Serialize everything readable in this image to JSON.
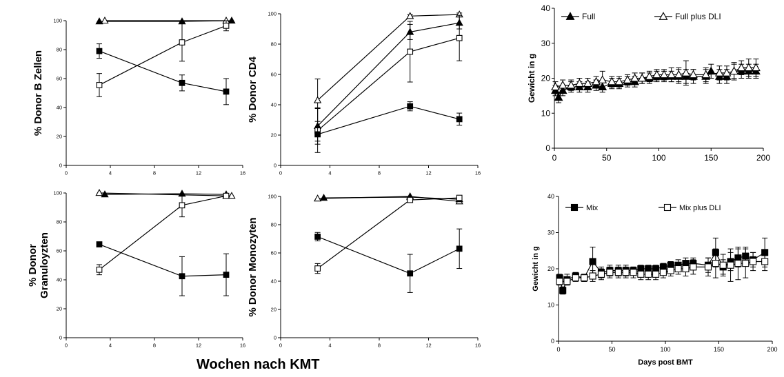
{
  "footer": {
    "xlabel": "Wochen nach KMT"
  },
  "chart_data": [
    {
      "id": "b-zellen",
      "type": "line",
      "ylabel": "% Donor B Zellen",
      "xlabel": "",
      "xlim": [
        0,
        16
      ],
      "ylim": [
        0,
        100
      ],
      "xticks": [
        0,
        4,
        8,
        12,
        16
      ],
      "yticks": [
        0,
        20,
        40,
        60,
        80,
        100
      ],
      "series": [
        {
          "marker": "tri-filled",
          "points": [
            [
              3,
              99.5
            ],
            [
              10.5,
              99.5
            ],
            [
              15,
              100
            ]
          ],
          "err": [
            0,
            0,
            0
          ]
        },
        {
          "marker": "tri-open",
          "points": [
            [
              3.5,
              100
            ],
            [
              14.5,
              100
            ]
          ],
          "err": [
            0,
            0
          ]
        },
        {
          "marker": "sq-filled",
          "points": [
            [
              3,
              79
            ],
            [
              10.5,
              57
            ],
            [
              14.5,
              51
            ]
          ],
          "err": [
            5,
            5.5,
            9
          ]
        },
        {
          "marker": "sq-open",
          "points": [
            [
              3,
              55.5
            ],
            [
              10.5,
              85
            ],
            [
              14.5,
              96.5
            ]
          ],
          "err": [
            8,
            13,
            3.5
          ]
        }
      ]
    },
    {
      "id": "cd4",
      "type": "line",
      "ylabel": "% Donor CD4",
      "xlabel": "",
      "xlim": [
        0,
        16
      ],
      "ylim": [
        0,
        100
      ],
      "xticks": [
        0,
        4,
        8,
        12,
        16
      ],
      "yticks": [
        0,
        20,
        40,
        60,
        80,
        100
      ],
      "series": [
        {
          "marker": "tri-open",
          "points": [
            [
              3,
              43
            ],
            [
              10.5,
              98.5
            ],
            [
              14.5,
              99.5
            ]
          ],
          "err": [
            14,
            1,
            1
          ]
        },
        {
          "marker": "tri-filled",
          "points": [
            [
              3,
              26
            ],
            [
              10.5,
              88
            ],
            [
              14.5,
              94
            ]
          ],
          "err": [
            12,
            5,
            4
          ]
        },
        {
          "marker": "sq-open",
          "points": [
            [
              3,
              23
            ],
            [
              10.5,
              75
            ],
            [
              14.5,
              84
            ]
          ],
          "err": [
            14.5,
            20,
            15
          ]
        },
        {
          "marker": "sq-filled",
          "points": [
            [
              3,
              20.5
            ],
            [
              10.5,
              39
            ],
            [
              14.5,
              30.5
            ]
          ],
          "err": [
            4.5,
            3,
            4
          ]
        }
      ]
    },
    {
      "id": "granulo",
      "type": "line",
      "ylabel": "% Donor\nGranuloyzten",
      "xlabel": "",
      "xlim": [
        0,
        16
      ],
      "ylim": [
        0,
        100
      ],
      "xticks": [
        0,
        4,
        8,
        12,
        16
      ],
      "yticks": [
        0,
        20,
        40,
        60,
        80,
        100
      ],
      "series": [
        {
          "marker": "tri-open",
          "points": [
            [
              3,
              100
            ],
            [
              14.5,
              98
            ],
            [
              15,
              98
            ]
          ],
          "err": [
            0,
            0,
            0
          ]
        },
        {
          "marker": "tri-filled",
          "points": [
            [
              3.5,
              99
            ],
            [
              10.5,
              99.5
            ],
            [
              14.5,
              99
            ]
          ],
          "err": [
            0,
            0,
            0
          ]
        },
        {
          "marker": "sq-open",
          "points": [
            [
              3,
              47
            ],
            [
              10.5,
              91.5
            ],
            [
              14.5,
              98
            ]
          ],
          "err": [
            3.5,
            8,
            1
          ]
        },
        {
          "marker": "sq-filled",
          "points": [
            [
              3,
              64.5
            ],
            [
              10.5,
              42.5
            ],
            [
              14.5,
              43.5
            ]
          ],
          "err": [
            1.5,
            13.5,
            14.5
          ]
        }
      ]
    },
    {
      "id": "monozyten",
      "type": "line",
      "ylabel": "% Donor Monozyten",
      "xlabel": "",
      "xlim": [
        0,
        16
      ],
      "ylim": [
        0,
        100
      ],
      "xticks": [
        0,
        4,
        8,
        12,
        16
      ],
      "yticks": [
        0,
        20,
        40,
        60,
        80,
        100
      ],
      "series": [
        {
          "marker": "tri-open",
          "points": [
            [
              3,
              98.5
            ],
            [
              10.5,
              100
            ],
            [
              14.5,
              96.5
            ]
          ],
          "err": [
            0,
            0,
            0
          ]
        },
        {
          "marker": "tri-filled",
          "points": [
            [
              3.5,
              99
            ],
            [
              10.5,
              99.5
            ],
            [
              14.5,
              98
            ]
          ],
          "err": [
            0,
            0,
            0
          ]
        },
        {
          "marker": "sq-open",
          "points": [
            [
              3,
              49
            ],
            [
              10.5,
              97.5
            ],
            [
              14.5,
              99
            ]
          ],
          "err": [
            3.5,
            1.5,
            1
          ]
        },
        {
          "marker": "sq-filled",
          "points": [
            [
              3,
              71.5
            ],
            [
              10.5,
              45.5
            ],
            [
              14.5,
              63
            ]
          ],
          "err": [
            3,
            13.5,
            14
          ]
        }
      ]
    },
    {
      "id": "gewicht-full",
      "type": "line",
      "ylabel": "Gewicht in g",
      "xlabel": "",
      "xlim": [
        0,
        200
      ],
      "ylim": [
        0,
        40
      ],
      "xticks": [
        0,
        50,
        100,
        150,
        200
      ],
      "yticks": [
        0,
        10,
        20,
        30,
        40
      ],
      "legend": "top",
      "series": [
        {
          "name": "Full",
          "marker": "tri-filled",
          "points": [
            [
              1,
              16.5
            ],
            [
              4,
              14.5
            ],
            [
              8,
              16.5
            ],
            [
              16,
              17.5
            ],
            [
              24,
              17.5
            ],
            [
              32,
              17.5
            ],
            [
              40,
              18
            ],
            [
              46,
              17.5
            ],
            [
              55,
              18.5
            ],
            [
              62,
              18.5
            ],
            [
              70,
              19
            ],
            [
              77,
              19
            ],
            [
              84,
              20
            ],
            [
              91,
              20
            ],
            [
              98,
              20.5
            ],
            [
              105,
              20.5
            ],
            [
              112,
              20.5
            ],
            [
              119,
              20.5
            ],
            [
              126,
              20.5
            ],
            [
              133,
              20.5
            ],
            [
              145,
              20.5
            ],
            [
              150,
              22
            ],
            [
              158,
              20.5
            ],
            [
              165,
              20.5
            ],
            [
              172,
              22
            ],
            [
              179,
              22
            ],
            [
              186,
              22
            ],
            [
              193,
              22
            ]
          ],
          "err": [
            1.5,
            1.5,
            1.5,
            1.5,
            1.5,
            1.5,
            1.5,
            1.5,
            1.5,
            1.5,
            1.5,
            1.5,
            1.5,
            1.5,
            1.5,
            1.5,
            1.5,
            2,
            2,
            2,
            2,
            2,
            2,
            2,
            2,
            2,
            2,
            2
          ]
        },
        {
          "name": "Full plus DLI",
          "marker": "tri-open",
          "points": [
            [
              1,
              17.5
            ],
            [
              8,
              18
            ],
            [
              16,
              18
            ],
            [
              24,
              18.5
            ],
            [
              32,
              18.5
            ],
            [
              40,
              19
            ],
            [
              46,
              19.5
            ],
            [
              55,
              19
            ],
            [
              62,
              19
            ],
            [
              70,
              19.5
            ],
            [
              77,
              20
            ],
            [
              84,
              20
            ],
            [
              91,
              20.5
            ],
            [
              98,
              21
            ],
            [
              105,
              21
            ],
            [
              112,
              21
            ],
            [
              119,
              21
            ],
            [
              126,
              21.5
            ],
            [
              133,
              21
            ],
            [
              145,
              21
            ],
            [
              158,
              21.5
            ],
            [
              165,
              21.5
            ],
            [
              172,
              22
            ],
            [
              179,
              23
            ],
            [
              186,
              23
            ],
            [
              193,
              23
            ]
          ],
          "err": [
            1.5,
            1.5,
            1.5,
            1.5,
            1.5,
            1.5,
            2.5,
            1.5,
            1.5,
            1.5,
            1.5,
            1.5,
            1.5,
            1.5,
            1.5,
            2,
            2,
            3.5,
            1.5,
            2,
            2,
            2,
            2.5,
            2,
            2.5,
            2.5
          ]
        }
      ]
    },
    {
      "id": "gewicht-mix",
      "type": "line",
      "ylabel": "Gewicht in g",
      "xlabel": "Days post BMT",
      "xlim": [
        0,
        200
      ],
      "ylim": [
        0,
        40
      ],
      "xticks": [
        0,
        50,
        100,
        150,
        200
      ],
      "yticks": [
        0,
        10,
        20,
        30,
        40
      ],
      "legend": "top",
      "series": [
        {
          "name": "Mix",
          "marker": "sq-filled",
          "points": [
            [
              1,
              17.5
            ],
            [
              4,
              14
            ],
            [
              8,
              17
            ],
            [
              16,
              18
            ],
            [
              24,
              17.5
            ],
            [
              32,
              22
            ],
            [
              40,
              19
            ],
            [
              48,
              19.5
            ],
            [
              56,
              19.5
            ],
            [
              63,
              19.5
            ],
            [
              70,
              19.5
            ],
            [
              77,
              20
            ],
            [
              84,
              20
            ],
            [
              91,
              20
            ],
            [
              98,
              20.5
            ],
            [
              105,
              21
            ],
            [
              112,
              21
            ],
            [
              119,
              21.5
            ],
            [
              126,
              21.5
            ],
            [
              140,
              21
            ],
            [
              147,
              24.5
            ],
            [
              154,
              20.5
            ],
            [
              161,
              22
            ],
            [
              168,
              23
            ],
            [
              175,
              23.5
            ],
            [
              182,
              22.5
            ],
            [
              193,
              24.5
            ]
          ],
          "err": [
            1,
            1,
            1.5,
            1,
            1,
            4,
            1.5,
            1.5,
            1.5,
            1.5,
            1,
            1,
            1,
            1,
            1,
            1,
            1.5,
            1.5,
            1.5,
            2,
            4,
            2,
            2.5,
            2.5,
            2.5,
            2,
            4
          ]
        },
        {
          "name": "Mix plus DLI",
          "marker": "sq-open",
          "points": [
            [
              1,
              16.5
            ],
            [
              8,
              16.5
            ],
            [
              16,
              17.5
            ],
            [
              24,
              17.5
            ],
            [
              32,
              18
            ],
            [
              40,
              18.5
            ],
            [
              48,
              19
            ],
            [
              56,
              19
            ],
            [
              63,
              19
            ],
            [
              70,
              19
            ],
            [
              77,
              18.5
            ],
            [
              84,
              18.5
            ],
            [
              91,
              18.5
            ],
            [
              98,
              19
            ],
            [
              105,
              19.5
            ],
            [
              112,
              20
            ],
            [
              119,
              20
            ],
            [
              126,
              20.5
            ],
            [
              140,
              20.5
            ],
            [
              147,
              21.5
            ],
            [
              154,
              21
            ],
            [
              161,
              21
            ],
            [
              168,
              21.5
            ],
            [
              175,
              21.5
            ],
            [
              182,
              22
            ],
            [
              193,
              22
            ]
          ],
          "err": [
            1,
            1,
            1,
            1,
            1.5,
            1.5,
            1.5,
            1.5,
            1.5,
            1.5,
            1.5,
            1.5,
            1.5,
            1.5,
            1.5,
            1.5,
            2,
            2,
            2.5,
            4,
            3,
            4.5,
            4.5,
            4,
            2.5,
            2.5
          ]
        }
      ]
    }
  ]
}
